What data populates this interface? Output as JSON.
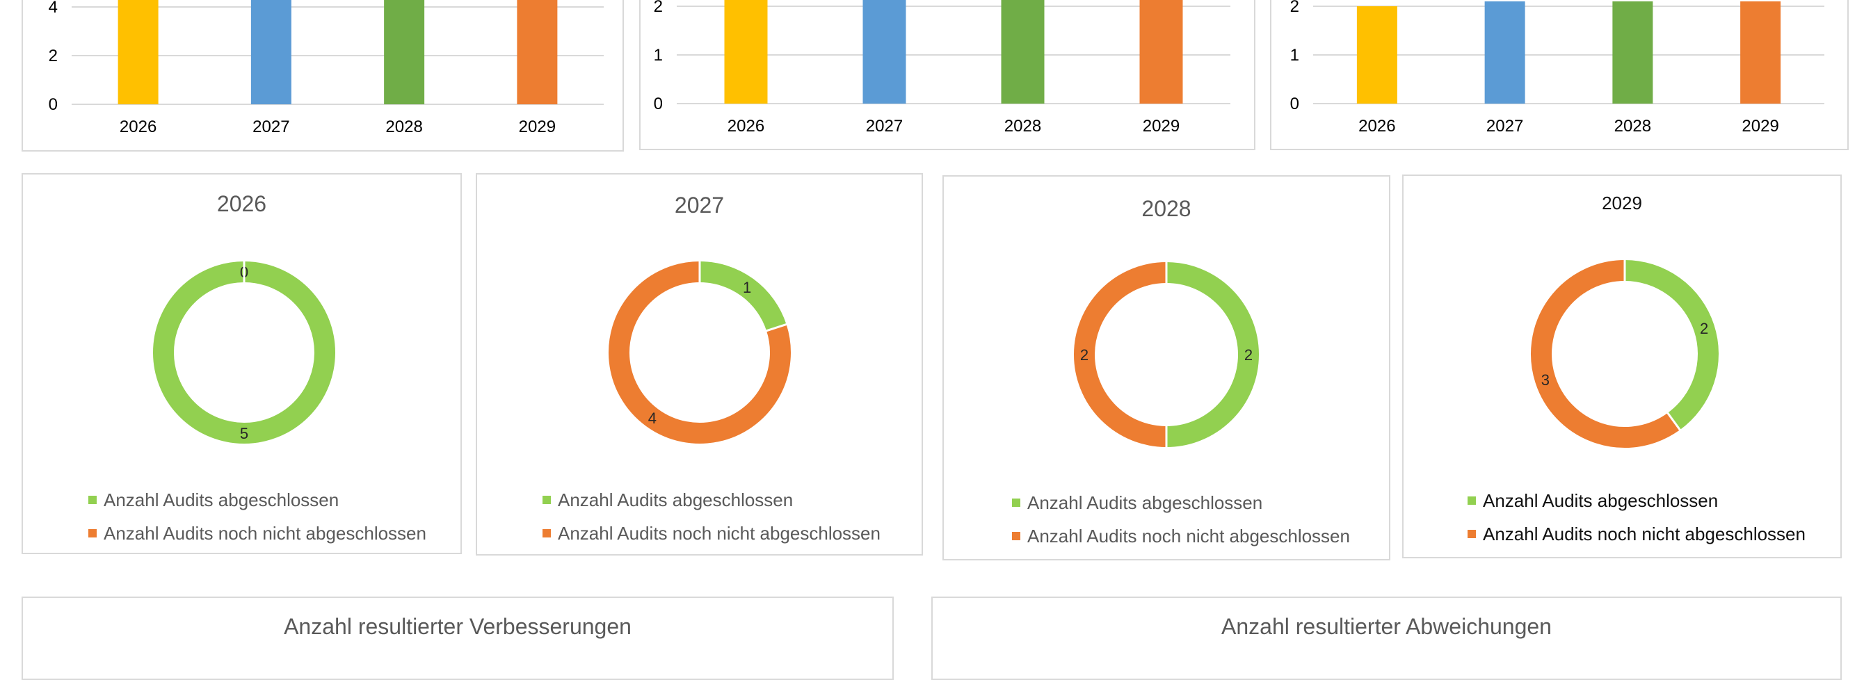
{
  "colors": {
    "completed": "#92d050",
    "open": "#ed7d31",
    "gridline": "#d9d9d9",
    "axis_text": "#000000",
    "border": "#d9d9d9"
  },
  "chart_data": [
    {
      "type": "bar",
      "categories": [
        "2026",
        "2027",
        "2028",
        "2029"
      ],
      "y_ticks": [
        "0",
        "2",
        "4"
      ],
      "ylim": [
        0,
        5
      ],
      "values": [
        5,
        5,
        5,
        5
      ],
      "bar_colors": [
        "#ffc000",
        "#5b9bd5",
        "#70ad47",
        "#ed7d31"
      ],
      "title": "",
      "xlabel": "",
      "ylabel": "",
      "grid": true
    },
    {
      "type": "bar",
      "categories": [
        "2026",
        "2027",
        "2028",
        "2029"
      ],
      "y_ticks": [
        "0",
        "1",
        "2"
      ],
      "ylim": [
        0,
        2.2
      ],
      "values": [
        2.2,
        2.2,
        2.2,
        2.2
      ],
      "bar_colors": [
        "#ffc000",
        "#5b9bd5",
        "#70ad47",
        "#ed7d31"
      ],
      "title": "",
      "xlabel": "",
      "ylabel": "",
      "grid": true
    },
    {
      "type": "bar",
      "categories": [
        "2026",
        "2027",
        "2028",
        "2029"
      ],
      "y_ticks": [
        "0",
        "1",
        "2"
      ],
      "ylim": [
        0,
        2.1
      ],
      "values": [
        2,
        2.1,
        2.1,
        2.1
      ],
      "bar_colors": [
        "#ffc000",
        "#5b9bd5",
        "#70ad47",
        "#ed7d31"
      ],
      "title": "",
      "xlabel": "",
      "ylabel": "",
      "grid": true
    },
    {
      "type": "pie",
      "title": "2026",
      "labels": [
        "Anzahl Audits abgeschlossen",
        "Anzahl Audits noch nicht abgeschlossen"
      ],
      "values": [
        5,
        0
      ],
      "value_labels": [
        "5",
        "0"
      ]
    },
    {
      "type": "pie",
      "title": "2027",
      "labels": [
        "Anzahl Audits abgeschlossen",
        "Anzahl Audits noch nicht abgeschlossen"
      ],
      "values": [
        1,
        4
      ],
      "value_labels": [
        "1",
        "4"
      ]
    },
    {
      "type": "pie",
      "title": "2028",
      "labels": [
        "Anzahl Audits abgeschlossen",
        "Anzahl Audits noch nicht abgeschlossen"
      ],
      "values": [
        2,
        2
      ],
      "value_labels": [
        "2",
        "2"
      ]
    },
    {
      "type": "pie",
      "title": "2029",
      "labels": [
        "Anzahl Audits abgeschlossen",
        "Anzahl Audits noch nicht abgeschlossen"
      ],
      "values": [
        2,
        3
      ],
      "value_labels": [
        "2",
        "3"
      ]
    },
    {
      "type": "bar",
      "title": "Anzahl resultierter Verbesserungen"
    },
    {
      "type": "bar",
      "title": "Anzahl resultierter Abweichungen"
    }
  ]
}
